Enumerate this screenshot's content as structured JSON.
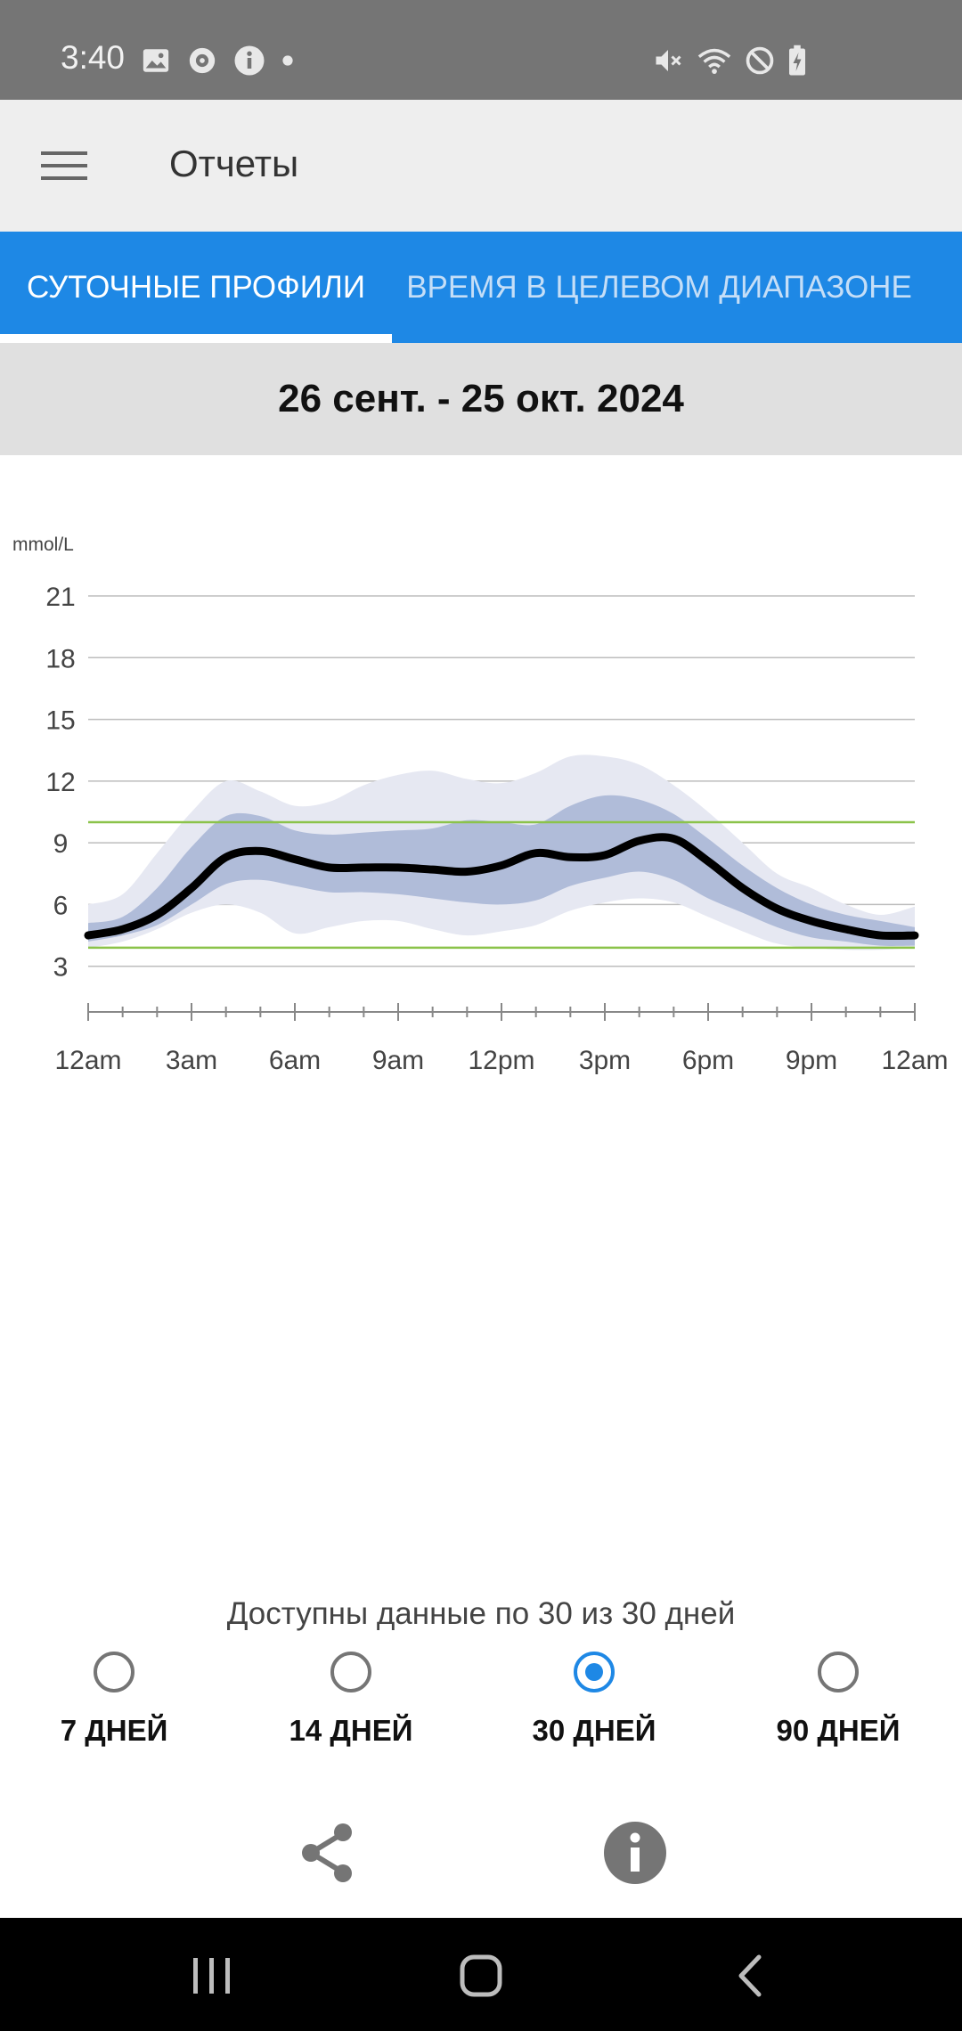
{
  "status_bar": {
    "time": "3:40"
  },
  "app_bar": {
    "title": "Отчеты"
  },
  "tabs": [
    {
      "label": "СУТОЧНЫЕ ПРОФИЛИ",
      "selected": true
    },
    {
      "label": "ВРЕМЯ В ЦЕЛЕВОМ ДИАПАЗОНЕ",
      "selected": false
    }
  ],
  "date_range": "26 сент. - 25 окт. 2024",
  "chart_data": {
    "type": "area",
    "title": "",
    "ylabel": "mmol/L",
    "xlabel": "",
    "ylim": [
      0,
      21
    ],
    "y_ticks": [
      "21",
      "18",
      "15",
      "12",
      "9",
      "6",
      "3"
    ],
    "x_ticks": [
      "12am",
      "3am",
      "6am",
      "9am",
      "12pm",
      "3pm",
      "6pm",
      "9pm",
      "12am"
    ],
    "target_range": [
      3.9,
      10.0
    ],
    "grid": true,
    "colors": {
      "median": "#000000",
      "band_inner": "#b0bcd9",
      "band_outer": "#e6e8f2",
      "target": "#8bc34a",
      "grid": "#bdbdbd"
    },
    "x_hours": [
      0,
      1,
      2,
      3,
      4,
      5,
      6,
      7,
      8,
      9,
      10,
      11,
      12,
      13,
      14,
      15,
      16,
      17,
      18,
      19,
      20,
      21,
      22,
      23,
      24
    ],
    "series": [
      {
        "name": "",
        "role": "p95",
        "values": [
          6.0,
          6.5,
          8.5,
          10.5,
          12.0,
          11.5,
          10.8,
          11.0,
          11.8,
          12.3,
          12.5,
          12.1,
          11.9,
          12.4,
          13.2,
          13.2,
          12.8,
          11.8,
          10.5,
          9.0,
          7.5,
          6.8,
          6.0,
          5.5,
          5.9
        ]
      },
      {
        "name": "",
        "role": "p75",
        "values": [
          5.1,
          5.4,
          6.8,
          8.8,
          10.3,
          10.3,
          9.6,
          9.4,
          9.5,
          9.6,
          9.7,
          10.1,
          10.0,
          9.9,
          10.8,
          11.3,
          11.1,
          10.4,
          9.2,
          7.9,
          6.8,
          6.0,
          5.5,
          5.2,
          4.9
        ]
      },
      {
        "name": "",
        "role": "median",
        "values": [
          4.5,
          4.8,
          5.5,
          6.8,
          8.3,
          8.6,
          8.2,
          7.8,
          7.8,
          7.8,
          7.7,
          7.6,
          7.9,
          8.5,
          8.3,
          8.4,
          9.1,
          9.2,
          8.1,
          6.8,
          5.8,
          5.2,
          4.8,
          4.5,
          4.5
        ]
      },
      {
        "name": "",
        "role": "p25",
        "values": [
          4.2,
          4.5,
          5.0,
          6.0,
          7.0,
          7.2,
          6.9,
          6.6,
          6.6,
          6.5,
          6.3,
          6.1,
          6.0,
          6.2,
          6.9,
          7.3,
          7.6,
          7.2,
          6.3,
          5.6,
          4.9,
          4.4,
          4.2,
          4.0,
          4.0
        ]
      },
      {
        "name": "",
        "role": "p5",
        "values": [
          3.9,
          4.2,
          4.8,
          5.6,
          6.0,
          5.6,
          4.6,
          4.9,
          5.2,
          5.2,
          4.8,
          4.5,
          4.7,
          5.0,
          5.7,
          6.1,
          6.3,
          6.1,
          5.4,
          4.7,
          4.1,
          3.9,
          3.8,
          3.8,
          3.9
        ]
      }
    ]
  },
  "data_availability": "Доступны данные по 30 из 30 дней",
  "period_options": [
    {
      "label": "7 ДНЕЙ",
      "selected": false
    },
    {
      "label": "14 ДНЕЙ",
      "selected": false
    },
    {
      "label": "30 ДНЕЙ",
      "selected": true
    },
    {
      "label": "90 ДНЕЙ",
      "selected": false
    }
  ],
  "actions": {
    "share_icon": "share-icon",
    "info_icon": "info-icon"
  }
}
